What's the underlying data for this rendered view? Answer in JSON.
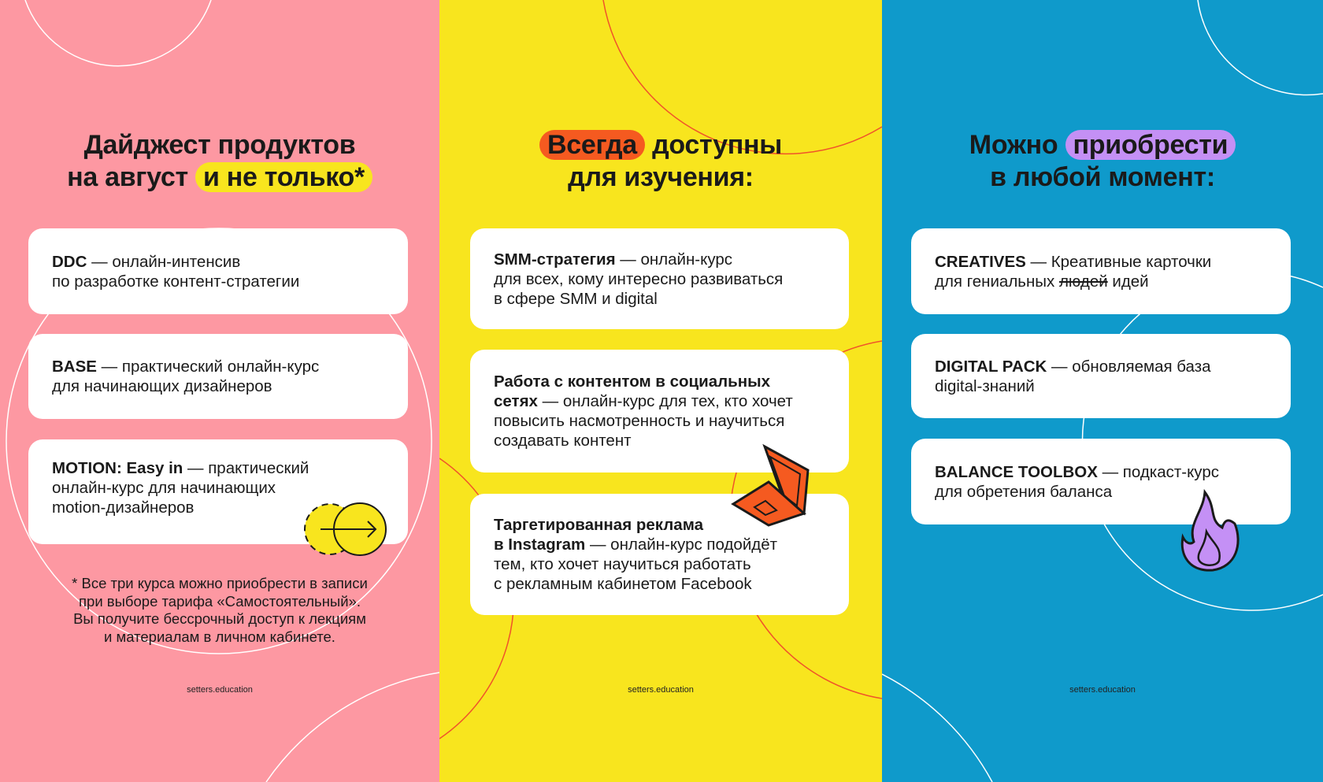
{
  "colors": {
    "pink": "#fd98a2",
    "yellow": "#f8e51e",
    "blue": "#0f9acb",
    "orange": "#f55a20",
    "purple": "#c490f5"
  },
  "panel1": {
    "title_line1": "Дайджест продуктов",
    "title_line2_plain": "на август",
    "title_line2_highlight": "и не только*",
    "cards": [
      {
        "name": "DDC",
        "desc": " — онлайн-интенсив",
        "desc2": "по разработке контент-стратегии"
      },
      {
        "name": "BASE",
        "desc": " — практический онлайн-курс",
        "desc2": "для начинающих дизайнеров"
      },
      {
        "name": "MOTION: Easy in",
        "desc": " — практический",
        "desc2": "онлайн-курс для начинающих",
        "desc3": "motion-дизайнеров"
      }
    ],
    "note": [
      "* Все три курса можно приобрести в записи",
      "при выборе тарифа «Самостоятельный».",
      "Вы получите бессрочный доступ к лекциям",
      "и материалам в личном кабинете."
    ],
    "footer": "setters.education",
    "icon": "arrow-circle-icon"
  },
  "panel2": {
    "title_highlight": "Всегда",
    "title_line1_rest": "доступны",
    "title_line2": "для изучения:",
    "cards": [
      {
        "name": "SMM-стратегия",
        "desc": " — онлайн-курс",
        "desc2": "для всех, кому интересно развиваться",
        "desc3": "в сфере SMM и digital"
      },
      {
        "name": "Работа с контентом в социальных",
        "name2": "сетях",
        "desc": " — онлайн-курс для тех, кто хочет",
        "desc2": "повысить насмотренность и научиться",
        "desc3": "создавать контент"
      },
      {
        "name": "Таргетированная реклама",
        "name2": "в Instagram",
        "desc": " — онлайн-курс подойдёт",
        "desc2": "тем, кто хочет научиться работать",
        "desc3": "с рекламным кабинетом Facebook"
      }
    ],
    "footer": "setters.education",
    "icon": "laptop-icon"
  },
  "panel3": {
    "title_plain": "Можно",
    "title_highlight": "приобрести",
    "title_line2": "в любой момент:",
    "cards": [
      {
        "name": "CREATIVES",
        "desc": " — Креативные карточки",
        "desc2a": "для гениальных ",
        "desc2_strike": "людей",
        "desc2b": " идей"
      },
      {
        "name": "DIGITAL PACK",
        "desc": " — обновляемая база",
        "desc2": "digital-знаний"
      },
      {
        "name": "BALANCE TOOLBOX",
        "desc": " — подкаст-курс",
        "desc2": "для обретения баланса"
      }
    ],
    "footer": "setters.education",
    "icon": "fire-icon"
  }
}
